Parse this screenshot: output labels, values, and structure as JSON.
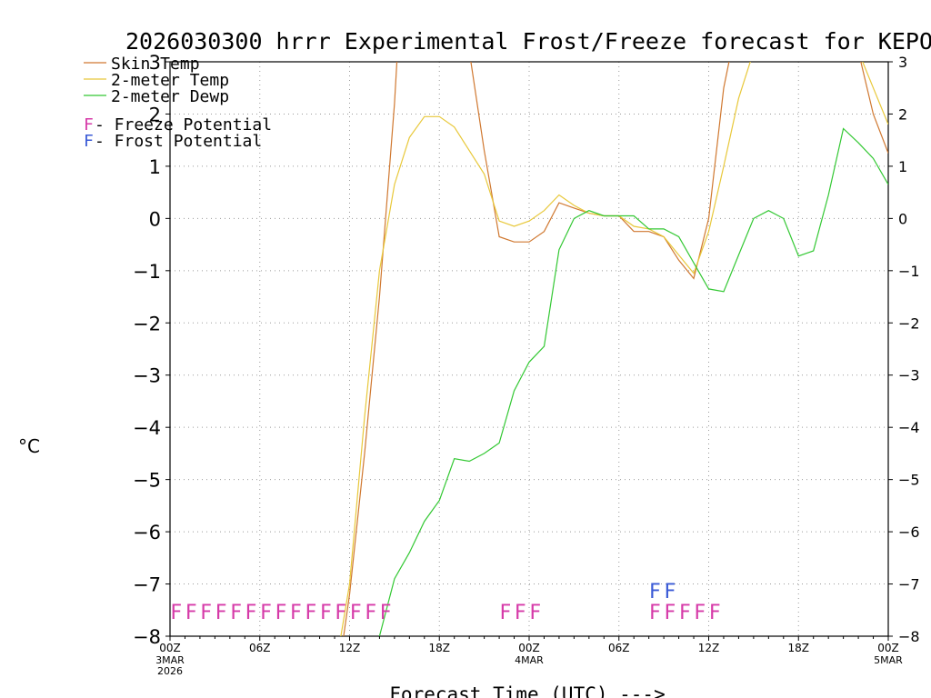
{
  "chart_data": {
    "type": "line",
    "title": "2026030300 hrrr Experimental Frost/Freeze forecast for KEPO",
    "ylabel": "°C",
    "xlabel": "Forecast Time (UTC) --->",
    "ylim": [
      -8,
      3
    ],
    "xlim": [
      0,
      48
    ],
    "grid": true,
    "legend_position": "top-left",
    "y_ticks": [
      -8,
      -7,
      -6,
      -5,
      -4,
      -3,
      -2,
      -1,
      0,
      1,
      2,
      3
    ],
    "x_ticks": [
      {
        "h": 0,
        "label": "00Z",
        "sub": [
          "3MAR",
          "2026"
        ]
      },
      {
        "h": 6,
        "label": "06Z",
        "sub": []
      },
      {
        "h": 12,
        "label": "12Z",
        "sub": []
      },
      {
        "h": 18,
        "label": "18Z",
        "sub": []
      },
      {
        "h": 24,
        "label": "00Z",
        "sub": [
          "4MAR"
        ]
      },
      {
        "h": 30,
        "label": "06Z",
        "sub": []
      },
      {
        "h": 36,
        "label": "12Z",
        "sub": []
      },
      {
        "h": 42,
        "label": "18Z",
        "sub": []
      },
      {
        "h": 48,
        "label": "00Z",
        "sub": [
          "5MAR"
        ]
      }
    ],
    "series": [
      {
        "name": "Skin Temp",
        "color": "#d07830",
        "x": [
          11.5,
          12,
          13,
          14,
          15,
          15.2,
          20,
          21,
          22,
          23,
          24,
          25,
          26,
          27,
          28,
          29,
          30,
          31,
          32,
          33,
          34,
          35,
          36,
          37,
          37.5,
          46,
          47,
          48
        ],
        "y": [
          -8.2,
          -7.2,
          -4.5,
          -1.5,
          2.2,
          3.2,
          3.2,
          1.3,
          -0.35,
          -0.45,
          -0.45,
          -0.25,
          0.3,
          0.2,
          0.1,
          0.05,
          0.05,
          -0.25,
          -0.25,
          -0.35,
          -0.8,
          -1.15,
          0,
          2.5,
          3.2,
          3.2,
          2.0,
          1.25
        ]
      },
      {
        "name": "2-meter Temp",
        "color": "#e8c83a",
        "x": [
          11.3,
          12,
          13,
          14,
          15,
          16,
          17,
          18,
          19,
          20,
          21,
          22,
          23,
          24,
          25,
          26,
          27,
          28,
          29,
          30,
          31,
          32,
          33,
          34,
          35,
          36,
          37,
          38,
          39,
          46,
          47,
          48
        ],
        "y": [
          -8.2,
          -7.0,
          -3.8,
          -1.0,
          0.65,
          1.55,
          1.95,
          1.95,
          1.75,
          1.3,
          0.85,
          -0.05,
          -0.15,
          -0.05,
          0.15,
          0.45,
          0.25,
          0.1,
          0.05,
          0.05,
          -0.15,
          -0.2,
          -0.35,
          -0.7,
          -1.05,
          -0.25,
          1.0,
          2.3,
          3.2,
          3.2,
          2.5,
          1.8
        ]
      },
      {
        "name": "2-meter Dewp",
        "color": "#33c833",
        "x": [
          14,
          15,
          16,
          17,
          18,
          19,
          20,
          21,
          22,
          23,
          24,
          25,
          26,
          27,
          28,
          29,
          30,
          31,
          32,
          33,
          34,
          35,
          36,
          37,
          38,
          39,
          40,
          41,
          42,
          43,
          44,
          45,
          46,
          47,
          48
        ],
        "y": [
          -8.0,
          -6.9,
          -6.4,
          -5.8,
          -5.4,
          -4.6,
          -4.65,
          -4.5,
          -4.3,
          -3.3,
          -2.75,
          -2.45,
          -0.6,
          0.0,
          0.15,
          0.05,
          0.05,
          0.05,
          -0.2,
          -0.2,
          -0.35,
          -0.85,
          -1.35,
          -1.4,
          -0.7,
          0.0,
          0.15,
          0.0,
          -0.72,
          -0.62,
          0.45,
          1.72,
          1.45,
          1.15,
          0.65
        ]
      }
    ],
    "markers": [
      {
        "kind": "freeze",
        "color": "#d63aa8",
        "row": "lower",
        "hours": [
          0,
          1,
          2,
          3,
          4,
          5,
          6,
          7,
          8,
          9,
          10,
          11,
          12,
          13,
          14,
          22,
          23,
          24,
          32,
          33,
          34,
          35,
          36
        ]
      },
      {
        "kind": "frost",
        "color": "#3a5ad6",
        "row": "upper",
        "hours": [
          32,
          33
        ]
      }
    ],
    "legend": {
      "series": [
        "Skin Temp",
        "2-meter Temp",
        "2-meter Dewp"
      ],
      "marker_glyph": "F",
      "freeze_text": " - Freeze Potential",
      "frost_text": " - Frost Potential"
    }
  }
}
